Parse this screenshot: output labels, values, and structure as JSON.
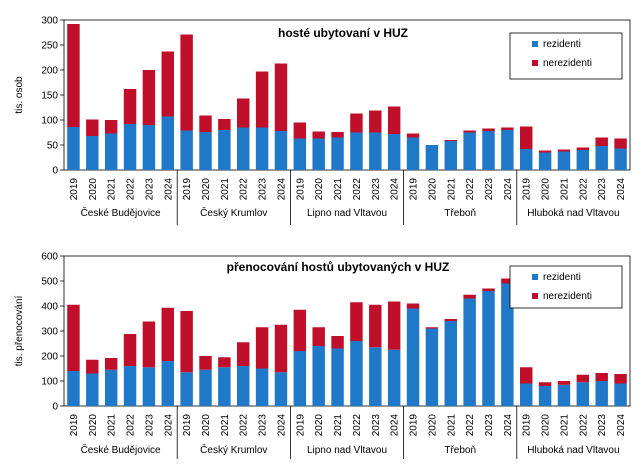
{
  "colors": {
    "rezidenti": "#1f78c8",
    "nerezidenti": "#c00f2a"
  },
  "chart_data": [
    {
      "type": "bar",
      "stacked": true,
      "title": "hosté ubytovaní v HUZ",
      "ylabel": "tis. osob",
      "ylim": [
        0,
        300
      ],
      "yticks": [
        0,
        50,
        100,
        150,
        200,
        250,
        300
      ],
      "years": [
        "2019",
        "2020",
        "2021",
        "2022",
        "2023",
        "2024"
      ],
      "groups": [
        "České Budějovice",
        "Český Krumlov",
        "Lipno nad Vltavou",
        "Třeboň",
        "Hluboká nad Vltavou"
      ],
      "legend": {
        "position": "top-right",
        "items": [
          "rezidenti",
          "nerezidenti"
        ]
      },
      "series": [
        {
          "name": "rezidenti",
          "values": [
            [
              86,
              68,
              73,
              92,
              90,
              107
            ],
            [
              79,
              76,
              80,
              85,
              85,
              78
            ],
            [
              63,
              63,
              65,
              75,
              75,
              72
            ],
            [
              65,
              50,
              58,
              75,
              78,
              80
            ],
            [
              42,
              35,
              37,
              40,
              48,
              43
            ]
          ]
        },
        {
          "name": "nerezidenti",
          "values": [
            [
              206,
              33,
              27,
              70,
              110,
              130
            ],
            [
              192,
              33,
              22,
              58,
              112,
              135
            ],
            [
              32,
              14,
              11,
              38,
              44,
              55
            ],
            [
              8,
              0,
              2,
              4,
              5,
              5
            ],
            [
              45,
              4,
              4,
              5,
              17,
              20
            ]
          ]
        }
      ]
    },
    {
      "type": "bar",
      "stacked": true,
      "title": "přenocování hostů ubytovaných v HUZ",
      "ylabel": "tis. přenocování",
      "ylim": [
        0,
        600
      ],
      "yticks": [
        0,
        100,
        200,
        300,
        400,
        500,
        600
      ],
      "years": [
        "2019",
        "2020",
        "2021",
        "2022",
        "2023",
        "2024"
      ],
      "groups": [
        "České Budějovice",
        "Český Krumlov",
        "Lipno nad Vltavou",
        "Třeboň",
        "Hluboká nad Vltavou"
      ],
      "legend": {
        "position": "top-right",
        "items": [
          "rezidenti",
          "nerezidenti"
        ]
      },
      "series": [
        {
          "name": "rezidenti",
          "values": [
            [
              140,
              130,
              145,
              160,
              155,
              180
            ],
            [
              135,
              145,
              155,
              160,
              150,
              135
            ],
            [
              220,
              240,
              230,
              260,
              235,
              225
            ],
            [
              390,
              310,
              340,
              430,
              460,
              490
            ],
            [
              90,
              80,
              85,
              95,
              100,
              90
            ]
          ]
        },
        {
          "name": "nerezidenti",
          "values": [
            [
              265,
              55,
              47,
              128,
              183,
              213
            ],
            [
              245,
              55,
              40,
              95,
              165,
              190
            ],
            [
              165,
              75,
              50,
              155,
              170,
              193
            ],
            [
              20,
              5,
              8,
              15,
              10,
              20
            ],
            [
              65,
              15,
              15,
              30,
              32,
              38
            ]
          ]
        }
      ]
    }
  ]
}
